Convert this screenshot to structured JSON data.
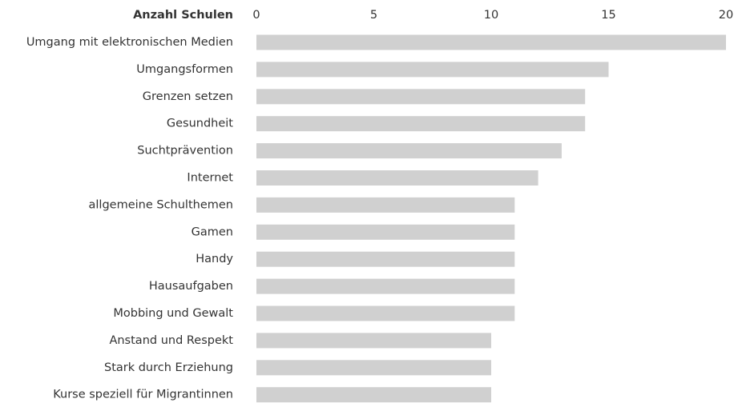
{
  "chart_data": {
    "type": "bar",
    "orientation": "horizontal",
    "xlabel": "Anzahl Schulen",
    "categories": [
      "Umgang mit elektronischen Medien",
      "Umgangsformen",
      "Grenzen setzen",
      "Gesundheit",
      "Suchtprävention",
      "Internet",
      "allgemeine Schulthemen",
      "Gamen",
      "Handy",
      "Hausaufgaben",
      "Mobbing und Gewalt",
      "Anstand und Respekt",
      "Stark durch Erziehung",
      "Kurse speziell für Migrantinnen"
    ],
    "values": [
      20,
      15,
      14,
      14,
      13,
      12,
      11,
      11,
      11,
      11,
      11,
      10,
      10,
      10
    ],
    "color": "#d0d0d0",
    "xlim": [
      0,
      20
    ],
    "xticks": [
      0,
      5,
      10,
      15,
      20
    ],
    "grid": false
  }
}
